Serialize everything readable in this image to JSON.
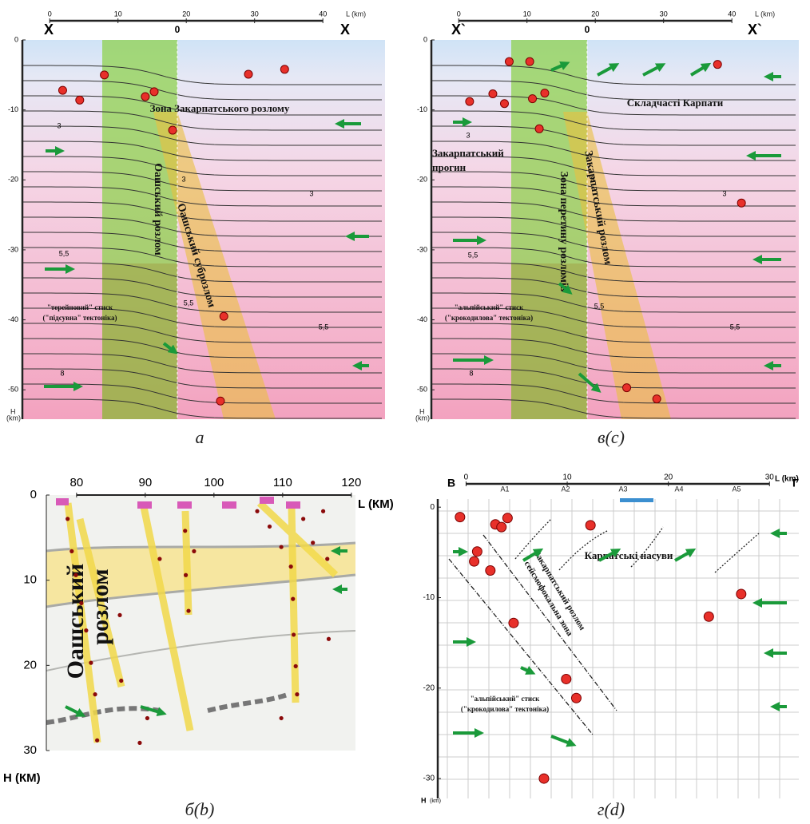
{
  "panels": {
    "a": {
      "caption": "а",
      "profile_marks": [
        "X",
        "0",
        "X"
      ],
      "x_label": "L (km)",
      "y_label": "H",
      "y_unit": "(km)",
      "xlim": [
        -4,
        49.1
      ],
      "ylim": [
        0,
        -54.2
      ],
      "xticks": [
        0,
        10,
        20,
        30,
        40
      ],
      "yticks": [
        0,
        -10,
        -20,
        -30,
        -40,
        -50
      ],
      "labels": [
        "Зона  Закарпатського  розлому",
        "Оашський розлом",
        "Оашський суброзлом",
        "\"терейновий\" стиск",
        "(\"підсувна\" тектоніка)"
      ],
      "contour_labels": [
        "3",
        "3",
        "3",
        "5,5",
        "5,5",
        "5,5",
        "8"
      ],
      "points": {
        "x": [
          1.9,
          4.4,
          8,
          14,
          15.3,
          18,
          29.1,
          34.4,
          25.5,
          25
        ],
        "y": [
          -7.2,
          -8.6,
          -5,
          -8.1,
          -7.4,
          -12.9,
          -4.9,
          -4.2,
          -39.5,
          -51.6
        ]
      }
    },
    "c": {
      "caption": "в(с)",
      "profile_marks": [
        "X`",
        "0",
        "X`"
      ],
      "x_label": "L (km)",
      "y_label": "H",
      "y_unit": "(km)",
      "xlim": [
        -4,
        49.8
      ],
      "ylim": [
        0,
        -54.2
      ],
      "xticks": [
        0,
        10,
        20,
        30,
        40
      ],
      "yticks": [
        0,
        -10,
        -20,
        -30,
        -40,
        -50
      ],
      "labels": [
        "Складчасті Карпати",
        "Закарпатський",
        "прогин",
        "Зона перетину розломів",
        "Закарпатський розлом",
        "\"альпійський\" стиск",
        "(\"крокодилова\" тектоніка)"
      ],
      "contour_labels": [
        "3",
        "3",
        "3",
        "5,5",
        "5,5",
        "5,5",
        "8"
      ],
      "points": {
        "x": [
          7.4,
          10.4,
          37.9,
          1.6,
          5,
          6.7,
          10.8,
          12.6,
          11.8,
          41.4,
          24.6,
          29
        ],
        "y": [
          -3.1,
          -3.1,
          -3.5,
          -8.8,
          -7.7,
          -9.1,
          -8.4,
          -7.6,
          -12.7,
          -23.3,
          -49.7,
          -51.3
        ]
      }
    },
    "b": {
      "caption": "б(b)",
      "x_label": "L (КМ)",
      "y_label": "Н (КМ)",
      "xlim": [
        75.6,
        120.6
      ],
      "ylim": [
        0,
        30
      ],
      "xticks": [
        80,
        90,
        100,
        110,
        120
      ],
      "yticks": [
        0,
        10,
        20,
        30
      ],
      "labels": [
        "Оашський",
        "розлом"
      ],
      "points": {
        "x": [
          78.7,
          79.3,
          79.9,
          80.7,
          81.4,
          82.1,
          82.7,
          83.0,
          86.3,
          86.5,
          90.3,
          89.2,
          92.1,
          95.8,
          95.9,
          96.3,
          97.1,
          106.3,
          108.1,
          109.8,
          111.2,
          111.5,
          111.6,
          111.9,
          112.1,
          113.0,
          114.4,
          115.9,
          116.5,
          116.7,
          109.8
        ],
        "y": [
          2.8,
          6.6,
          9.4,
          12.7,
          15.9,
          19.7,
          23.4,
          28.8,
          14.1,
          21.8,
          26.2,
          29.1,
          7.5,
          4.2,
          9.4,
          13.6,
          6.6,
          1.9,
          3.7,
          6.1,
          8.4,
          12.2,
          16.4,
          20.1,
          23.4,
          2.8,
          5.6,
          1.9,
          7.5,
          16.9,
          26.2
        ]
      }
    },
    "d": {
      "caption": "г(d)",
      "profile_marks": [
        "В",
        "Г"
      ],
      "x_label": "L (km)",
      "y_label": "H",
      "y_unit": "(km)",
      "stations": [
        "А1",
        "А2",
        "А3",
        "А4",
        "А5"
      ],
      "xlim": [
        -2.8,
        32.9
      ],
      "ylim": [
        0.9,
        -32.2
      ],
      "xticks": [
        0,
        10,
        20,
        30
      ],
      "yticks": [
        0,
        -10,
        -20,
        -30
      ],
      "labels": [
        "Карпатські насуви",
        "Закарпатський розлом",
        "сейсмофокальна зона",
        "\"альпійський\" стиск",
        "(\"крокодилова\" тектоніка)"
      ],
      "points": {
        "x": [
          -0.6,
          2.9,
          3.5,
          4.1,
          1.1,
          0.8,
          2.4,
          4.7,
          12.3,
          9.9,
          10.9,
          24,
          27.2,
          7.7
        ],
        "y": [
          -1.1,
          -1.9,
          -2.2,
          -1.2,
          -4.9,
          -6.0,
          -7.0,
          -12.8,
          -2.0,
          -19.0,
          -21.1,
          -12.1,
          -9.6,
          -30
        ]
      }
    }
  }
}
